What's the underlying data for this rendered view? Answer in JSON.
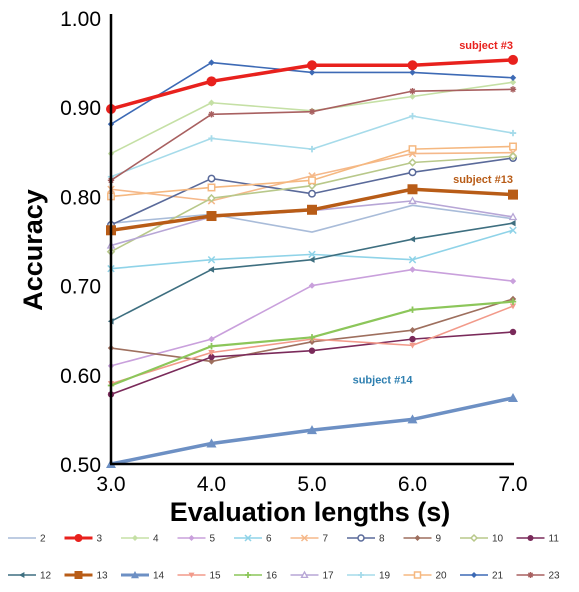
{
  "chart_data": {
    "type": "line",
    "ylabel": "Accuracy",
    "xlabel": "Evaluation lengths (s)",
    "x": [
      3.0,
      4.0,
      5.0,
      6.0,
      7.0
    ],
    "x_tick_labels": [
      "3.0",
      "4.0",
      "5.0",
      "6.0",
      "7.0"
    ],
    "ylim": [
      0.5,
      1.0
    ],
    "y_tick_labels": [
      "0.50",
      "0.60",
      "0.70",
      "0.80",
      "0.90",
      "1.00"
    ],
    "y_ticks": [
      0.5,
      0.6,
      0.7,
      0.8,
      0.9,
      1.0
    ],
    "grid": false,
    "legend_position": "bottom",
    "annotations": [
      {
        "text": "subject #3",
        "x": 7.0,
        "y": 0.965,
        "color": "#e8211d"
      },
      {
        "text": "subject #13",
        "x": 7.0,
        "y": 0.815,
        "color": "#b85c17"
      },
      {
        "text": "subject #14",
        "x": 6.0,
        "y": 0.59,
        "color": "#2e7fb0"
      }
    ],
    "series": [
      {
        "name": "2",
        "values": [
          0.77,
          0.78,
          0.76,
          0.79,
          0.775
        ],
        "color": "#a9bcd9",
        "marker": "none",
        "width": 1.6
      },
      {
        "name": "3",
        "values": [
          0.898,
          0.929,
          0.947,
          0.947,
          0.953
        ],
        "color": "#e8211d",
        "marker": "circle",
        "width": 3.5
      },
      {
        "name": "4",
        "values": [
          0.848,
          0.905,
          0.896,
          0.912,
          0.928
        ],
        "color": "#c5e0a5",
        "marker": "diamond",
        "width": 1.6
      },
      {
        "name": "5",
        "values": [
          0.61,
          0.64,
          0.7,
          0.718,
          0.705
        ],
        "color": "#c9a0dc",
        "marker": "diamond",
        "width": 1.6
      },
      {
        "name": "6",
        "values": [
          0.719,
          0.729,
          0.735,
          0.729,
          0.762
        ],
        "color": "#8fd3e8",
        "marker": "x",
        "width": 1.6
      },
      {
        "name": "7",
        "values": [
          0.808,
          0.795,
          0.823,
          0.848,
          0.849
        ],
        "color": "#f5b88a",
        "marker": "x",
        "width": 1.6
      },
      {
        "name": "8",
        "values": [
          0.768,
          0.82,
          0.803,
          0.827,
          0.843
        ],
        "color": "#5a6a9a",
        "marker": "opencircle",
        "width": 1.6
      },
      {
        "name": "9",
        "values": [
          0.63,
          0.615,
          0.637,
          0.65,
          0.685
        ],
        "color": "#9e6f5e",
        "marker": "diamond",
        "width": 1.6
      },
      {
        "name": "10",
        "values": [
          0.738,
          0.798,
          0.812,
          0.838,
          0.845
        ],
        "color": "#b8c88a",
        "marker": "opendiamond",
        "width": 1.6
      },
      {
        "name": "11",
        "values": [
          0.578,
          0.62,
          0.627,
          0.64,
          0.648
        ],
        "color": "#7a2a5a",
        "marker": "circle",
        "width": 1.6
      },
      {
        "name": "12",
        "values": [
          0.66,
          0.718,
          0.729,
          0.752,
          0.77
        ],
        "color": "#3e6f80",
        "marker": "triangleleft",
        "width": 1.6
      },
      {
        "name": "13",
        "values": [
          0.762,
          0.778,
          0.785,
          0.808,
          0.802
        ],
        "color": "#b85c17",
        "marker": "square",
        "width": 3.5
      },
      {
        "name": "14",
        "values": [
          0.5,
          0.523,
          0.538,
          0.55,
          0.574
        ],
        "color": "#6d90c4",
        "marker": "triangle",
        "width": 3.5
      },
      {
        "name": "15",
        "values": [
          0.59,
          0.625,
          0.64,
          0.633,
          0.677
        ],
        "color": "#f29a8a",
        "marker": "triangledown",
        "width": 1.6
      },
      {
        "name": "16",
        "values": [
          0.588,
          0.632,
          0.642,
          0.673,
          0.682
        ],
        "color": "#8cc65a",
        "marker": "plus",
        "width": 2.2
      },
      {
        "name": "17",
        "values": [
          0.745,
          0.777,
          0.784,
          0.795,
          0.777
        ],
        "color": "#b7a6d6",
        "marker": "opentriangle",
        "width": 1.6
      },
      {
        "name": "19",
        "values": [
          0.822,
          0.865,
          0.853,
          0.89,
          0.871
        ],
        "color": "#a6dbea",
        "marker": "plus",
        "width": 1.6
      },
      {
        "name": "20",
        "values": [
          0.8,
          0.81,
          0.818,
          0.853,
          0.856
        ],
        "color": "#f5b880",
        "marker": "opensquare",
        "width": 1.6
      },
      {
        "name": "21",
        "values": [
          0.881,
          0.95,
          0.939,
          0.939,
          0.933
        ],
        "color": "#3d6ab5",
        "marker": "diamond",
        "width": 1.6
      },
      {
        "name": "23",
        "values": [
          0.818,
          0.892,
          0.895,
          0.918,
          0.92
        ],
        "color": "#a86060",
        "marker": "star",
        "width": 1.6
      }
    ]
  }
}
